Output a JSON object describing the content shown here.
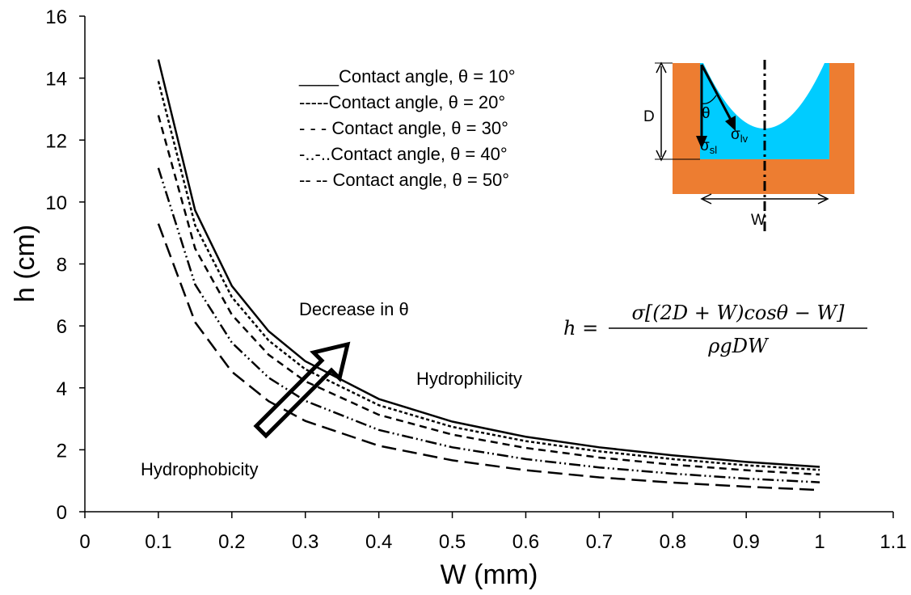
{
  "chart_data": {
    "type": "line",
    "x_label": "W (mm)",
    "y_label": "h (cm)",
    "xlim": [
      0,
      1.1
    ],
    "xticks": [
      0,
      0.1,
      0.2,
      0.3,
      0.4,
      0.5,
      0.6,
      0.7,
      0.8,
      0.9,
      1,
      1.1
    ],
    "ylim": [
      0,
      16
    ],
    "yticks": [
      0,
      2,
      4,
      6,
      8,
      10,
      12,
      14,
      16
    ],
    "grid": false,
    "x": [
      0.1,
      0.15,
      0.2,
      0.25,
      0.3,
      0.4,
      0.5,
      0.6,
      0.7,
      0.8,
      0.9,
      1
    ],
    "series": [
      {
        "name": "____Contact angle, θ = 10°",
        "color": "#000000",
        "dash": "none",
        "values": [
          14.6,
          9.73,
          7.29,
          5.83,
          4.86,
          3.64,
          2.91,
          2.42,
          2.08,
          1.82,
          1.61,
          1.45
        ]
      },
      {
        "name": "-----Contact angle, θ = 20°",
        "color": "#000000",
        "dash": "4 3",
        "values": [
          13.9,
          9.25,
          6.93,
          5.53,
          4.6,
          3.44,
          2.74,
          2.28,
          1.95,
          1.7,
          1.5,
          1.35
        ]
      },
      {
        "name": "- - - Contact angle, θ = 30°",
        "color": "#000000",
        "dash": "9 6",
        "values": [
          12.8,
          8.5,
          6.36,
          5.07,
          4.21,
          3.13,
          2.49,
          2.06,
          1.75,
          1.52,
          1.34,
          1.2
        ]
      },
      {
        "name": "-..-..Contact angle, θ = 40°",
        "color": "#000000",
        "dash": "14 4 2 4 2 4",
        "values": [
          11.1,
          7.34,
          5.46,
          4.33,
          3.58,
          2.64,
          2.08,
          1.7,
          1.43,
          1.23,
          1.07,
          0.95
        ]
      },
      {
        "name": "-- -- Contact angle, θ = 50°",
        "color": "#000000",
        "dash": "18 8",
        "values": [
          9.3,
          6.12,
          4.52,
          3.57,
          2.93,
          2.13,
          1.66,
          1.34,
          1.11,
          0.94,
          0.81,
          0.7
        ]
      }
    ],
    "annotations": {
      "decrease": "Decrease in θ",
      "hydrophilicity": "Hydrophilicity",
      "hydrophobicity": "Hydrophobicity",
      "formula_lhs": "h =",
      "formula_numerator": "σ[(2D + W)cosθ − W]",
      "formula_denominator": "ρgDW"
    },
    "inset": {
      "depth": "D",
      "width": "W",
      "angle": "θ",
      "sigma_lv": {
        "symbol": "σ",
        "sub": "lv"
      },
      "sigma_sl": {
        "symbol": "σ",
        "sub": "sl"
      }
    }
  }
}
